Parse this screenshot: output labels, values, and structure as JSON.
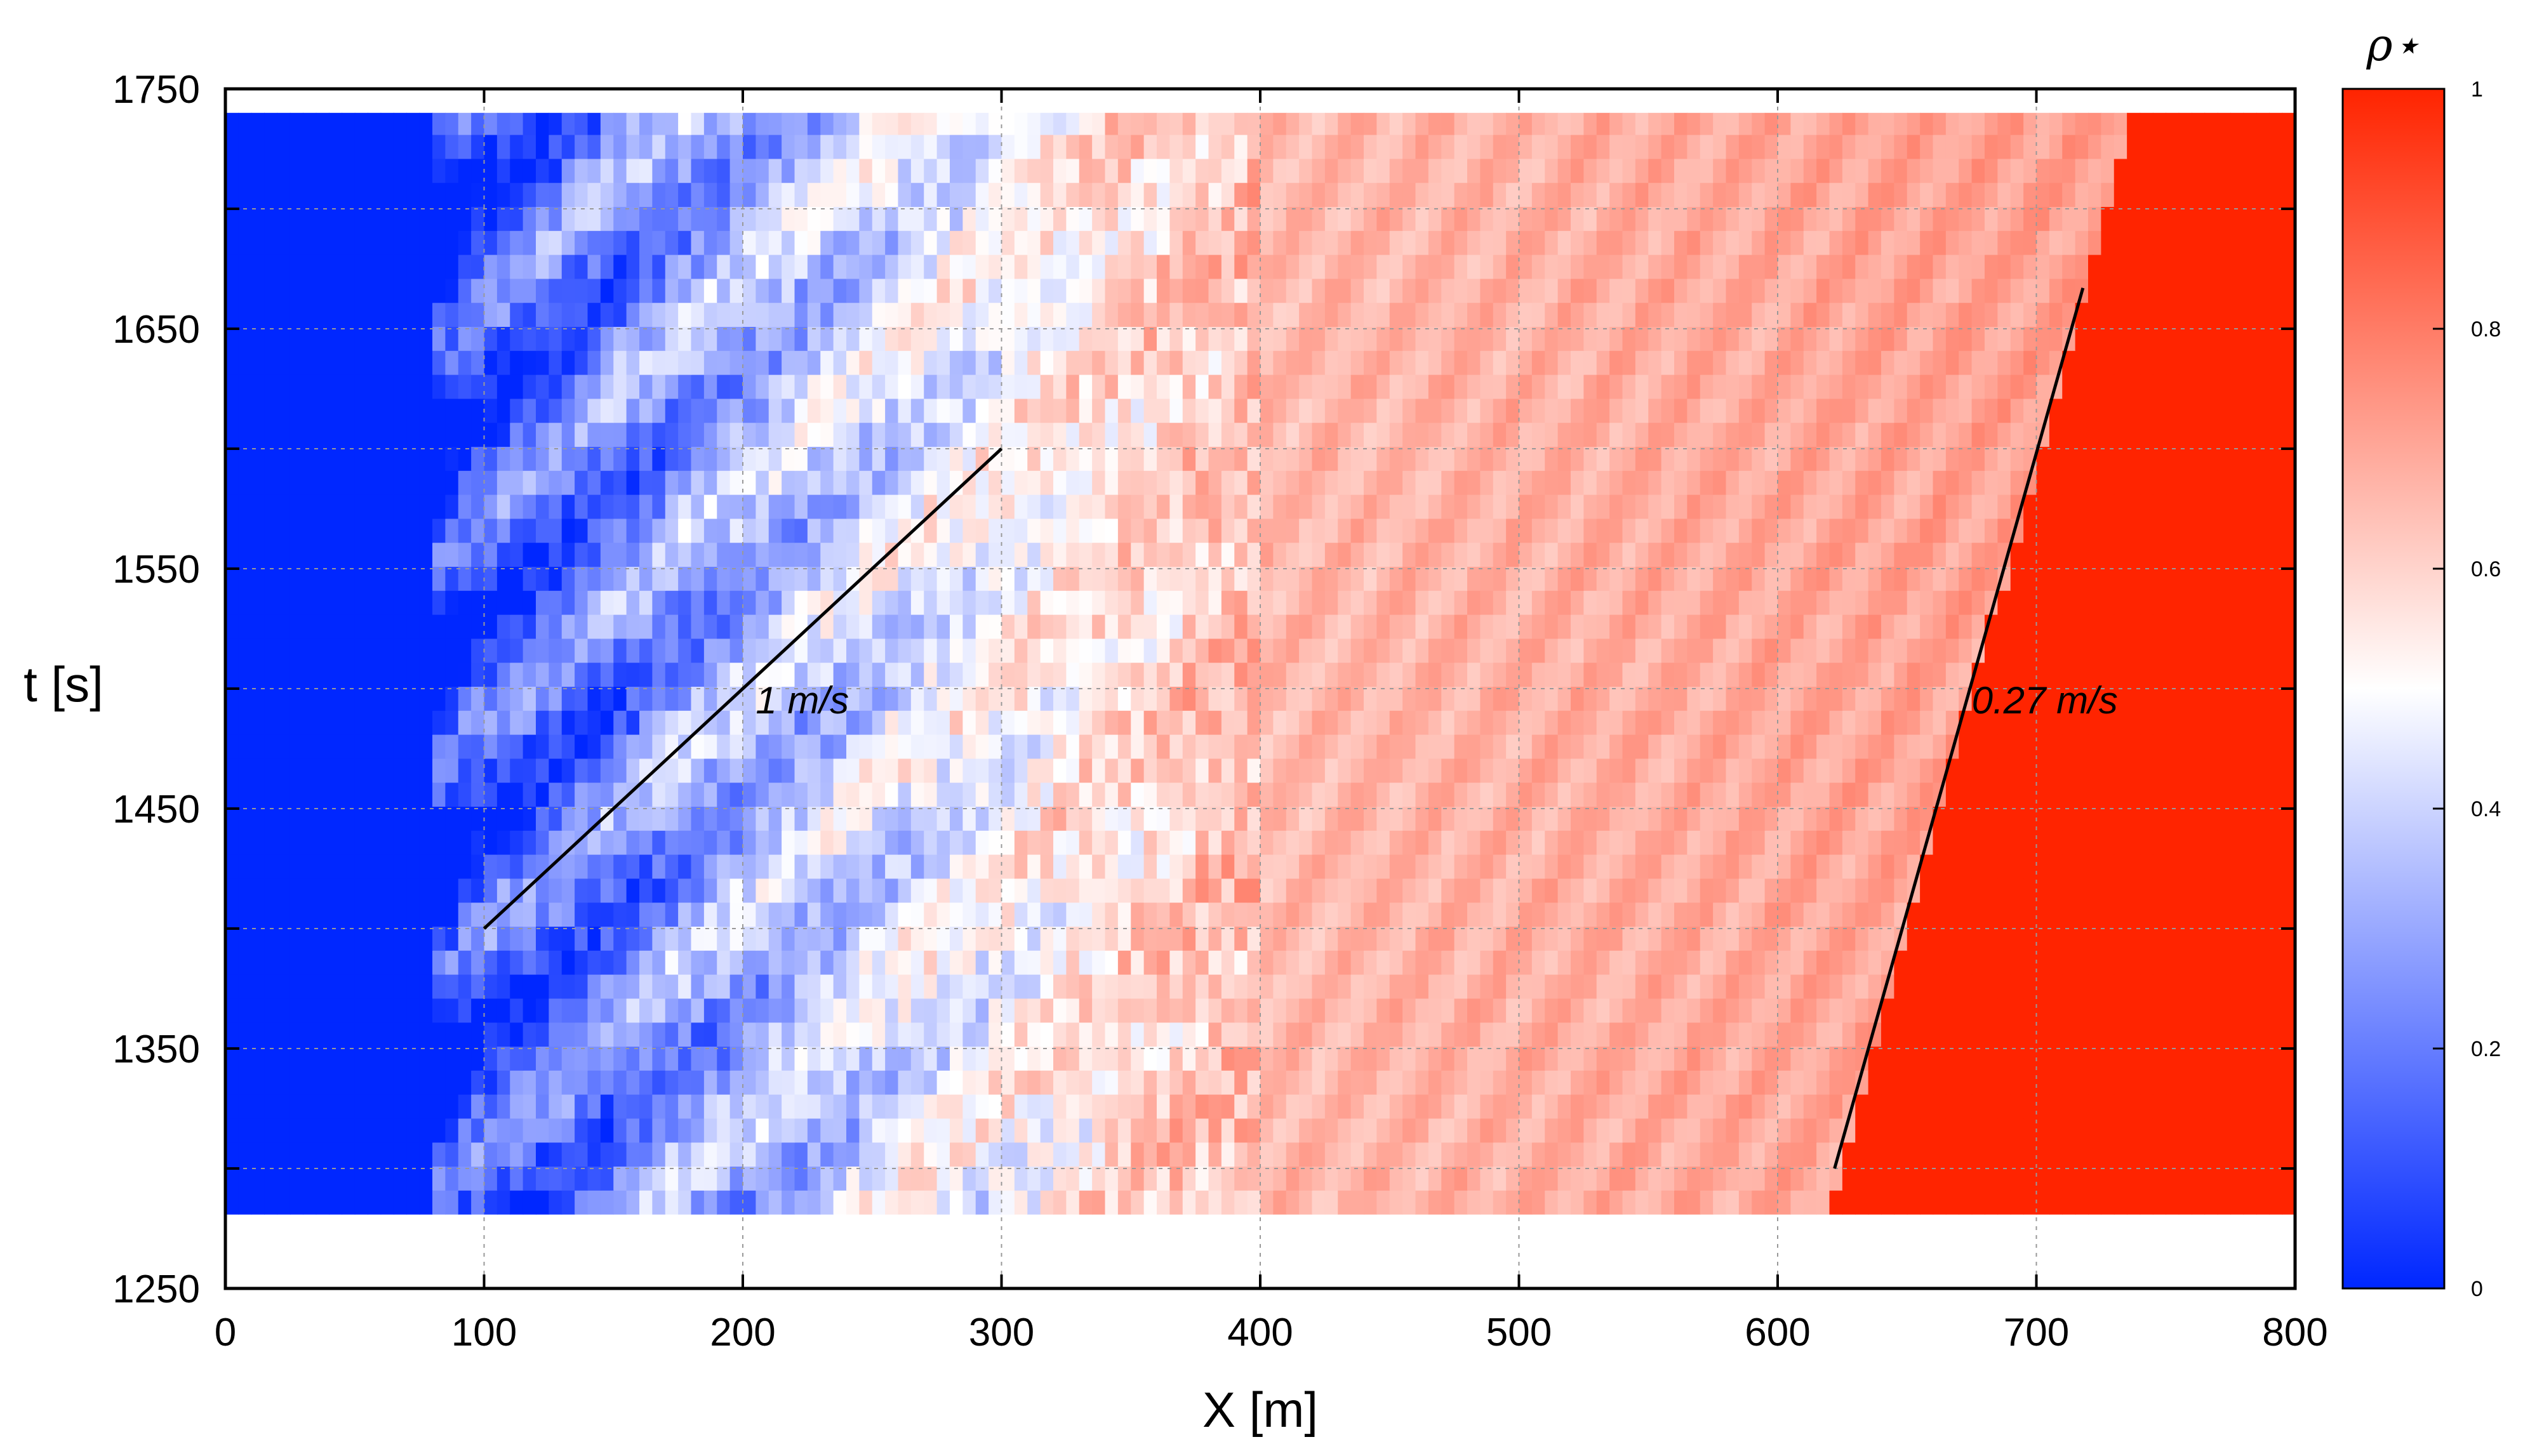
{
  "chart_data": {
    "type": "heatmap",
    "title": "",
    "xlabel": "X [m]",
    "ylabel": "t [s]",
    "xlim": [
      0,
      800
    ],
    "ylim": [
      1250,
      1750
    ],
    "data_t_range": [
      1281,
      1740
    ],
    "x_ticks": [
      "0",
      "100",
      "200",
      "300",
      "400",
      "500",
      "600",
      "700",
      "800"
    ],
    "y_ticks": [
      "1250",
      "1350",
      "1450",
      "1550",
      "1650",
      "1750"
    ],
    "grid": true,
    "colorbar": {
      "label": "ρ⋆",
      "range": [
        0,
        1
      ],
      "ticks": [
        "0",
        "0.2",
        "0.4",
        "0.6",
        "0.8",
        "1"
      ],
      "colormap": [
        "#0027ff",
        "#ffffff",
        "#ff2400"
      ]
    },
    "density_profile": [
      {
        "x": 0,
        "rho": 0.0
      },
      {
        "x": 80,
        "rho": 0.0
      },
      {
        "x": 100,
        "rho": 0.12
      },
      {
        "x": 150,
        "rho": 0.22
      },
      {
        "x": 200,
        "rho": 0.32
      },
      {
        "x": 250,
        "rho": 0.42
      },
      {
        "x": 300,
        "rho": 0.5
      },
      {
        "x": 350,
        "rho": 0.58
      },
      {
        "x": 400,
        "rho": 0.66
      },
      {
        "x": 500,
        "rho": 0.68
      },
      {
        "x": 600,
        "rho": 0.7
      },
      {
        "x": 700,
        "rho": 0.72
      }
    ],
    "jam_front": {
      "x_start": 620,
      "t_start": 1281,
      "x_end": 737,
      "t_end": 1740,
      "rho": 1.0
    },
    "annotations": [
      {
        "text": "1 m/s",
        "x": 205,
        "t": 1495
      },
      {
        "text": "0.27 m/s",
        "x": 675,
        "t": 1495
      }
    ],
    "lines": [
      {
        "name": "1 m/s",
        "x1": 100,
        "t1": 1400,
        "x2": 300,
        "t2": 1600
      },
      {
        "name": "0.27 m/s",
        "x1": 622,
        "t1": 1300,
        "x2": 718,
        "t2": 1667
      }
    ]
  }
}
